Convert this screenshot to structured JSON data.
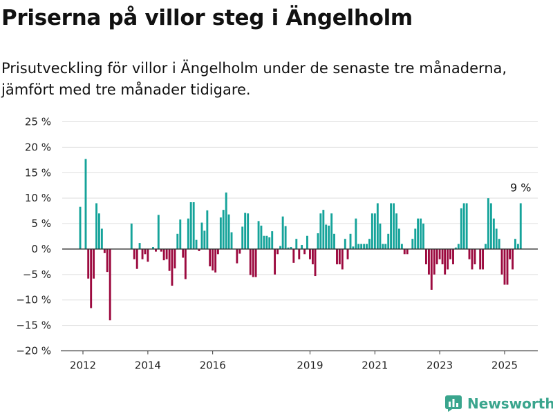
{
  "header": {
    "title": "Priserna på villor steg i Ängelholm",
    "subtitle": "Prisutveckling för villor i Ängelholm under de senaste tre månaderna, jämfört med tre månader tidigare."
  },
  "brand": {
    "name": "Newsworthy",
    "icon": "newsworthy-logo-icon",
    "color": "#3aa58d"
  },
  "colors": {
    "positive": "#15a39a",
    "negative": "#9c0a3f",
    "grid": "#dddddd",
    "zero_line": "#333333"
  },
  "chart_data": {
    "type": "bar",
    "title": "Priserna på villor steg i Ängelholm",
    "subtitle": "Prisutveckling för villor i Ängelholm under de senaste tre månaderna, jämfört med tre månader tidigare.",
    "xlabel": "",
    "ylabel": "",
    "unit": "%",
    "ylim": [
      -20,
      25
    ],
    "y_ticks": [
      25,
      20,
      15,
      10,
      5,
      0,
      -5,
      -10,
      -15,
      -20
    ],
    "y_tick_labels": [
      "25 %",
      "20 %",
      "15 %",
      "10 %",
      "5 %",
      "0 %",
      "−5 %",
      "−10 %",
      "−15 %",
      "−20 %"
    ],
    "x_tick_labels": [
      "2012",
      "2014",
      "2016",
      "2019",
      "2021",
      "2023",
      "2025"
    ],
    "grid": true,
    "legend": "none",
    "annotation": {
      "text": "9 %",
      "points_to": "last bar"
    },
    "series": [
      {
        "name": "",
        "points": [
          [
            "2011-12-01",
            8.3
          ],
          [
            "2012-01-01",
            0
          ],
          [
            "2012-02-01",
            17.7
          ],
          [
            "2012-03-01",
            -5.8
          ],
          [
            "2012-04-01",
            -11.6
          ],
          [
            "2012-05-01",
            -5.8
          ],
          [
            "2012-06-01",
            9
          ],
          [
            "2012-07-01",
            7
          ],
          [
            "2012-08-01",
            4
          ],
          [
            "2012-09-01",
            -0.8
          ],
          [
            "2012-10-01",
            -4.5
          ],
          [
            "2012-11-01",
            -14
          ],
          [
            "2013-07-01",
            5
          ],
          [
            "2013-08-01",
            -2
          ],
          [
            "2013-09-01",
            -3.9
          ],
          [
            "2013-10-01",
            1.2
          ],
          [
            "2013-11-01",
            -2
          ],
          [
            "2013-12-01",
            -1
          ],
          [
            "2014-01-01",
            -2.5
          ],
          [
            "2014-03-01",
            0.4
          ],
          [
            "2014-04-01",
            -0.5
          ],
          [
            "2014-05-01",
            6.7
          ],
          [
            "2014-06-01",
            -0.5
          ],
          [
            "2014-07-01",
            -2.2
          ],
          [
            "2014-08-01",
            -2
          ],
          [
            "2014-09-01",
            -4.3
          ],
          [
            "2014-10-01",
            -7.2
          ],
          [
            "2014-11-01",
            -3.8
          ],
          [
            "2014-12-01",
            3
          ],
          [
            "2015-01-01",
            5.8
          ],
          [
            "2015-02-01",
            -1.7
          ],
          [
            "2015-03-01",
            -5.9
          ],
          [
            "2015-04-01",
            6
          ],
          [
            "2015-05-01",
            9.2
          ],
          [
            "2015-06-01",
            9.2
          ],
          [
            "2015-07-01",
            1.8
          ],
          [
            "2015-08-01",
            -0.4
          ],
          [
            "2015-09-01",
            5.2
          ],
          [
            "2015-10-01",
            3.6
          ],
          [
            "2015-11-01",
            7.6
          ],
          [
            "2015-12-01",
            -3.4
          ],
          [
            "2016-01-01",
            -4.2
          ],
          [
            "2016-02-01",
            -4.6
          ],
          [
            "2016-03-01",
            -1
          ],
          [
            "2016-04-01",
            6.2
          ],
          [
            "2016-05-01",
            7.7
          ],
          [
            "2016-06-01",
            11.1
          ],
          [
            "2016-07-01",
            6.8
          ],
          [
            "2016-08-01",
            3.3
          ],
          [
            "2016-10-01",
            -2.8
          ],
          [
            "2016-11-01",
            -0.9
          ],
          [
            "2016-12-01",
            4.4
          ],
          [
            "2017-01-01",
            7.1
          ],
          [
            "2017-02-01",
            7
          ],
          [
            "2017-03-01",
            -5.1
          ],
          [
            "2017-04-01",
            -5.5
          ],
          [
            "2017-05-01",
            -5.5
          ],
          [
            "2017-06-01",
            5.5
          ],
          [
            "2017-07-01",
            4.6
          ],
          [
            "2017-08-01",
            2.6
          ],
          [
            "2017-09-01",
            2.6
          ],
          [
            "2017-10-01",
            2.3
          ],
          [
            "2017-11-01",
            3.5
          ],
          [
            "2017-12-01",
            -5
          ],
          [
            "2018-01-01",
            -1
          ],
          [
            "2018-02-01",
            0.6
          ],
          [
            "2018-03-01",
            6.4
          ],
          [
            "2018-04-01",
            4.5
          ],
          [
            "2018-05-01",
            0.3
          ],
          [
            "2018-06-01",
            0.4
          ],
          [
            "2018-07-01",
            -2.7
          ],
          [
            "2018-08-01",
            2
          ],
          [
            "2018-09-01",
            -2
          ],
          [
            "2018-10-01",
            0.8
          ],
          [
            "2018-11-01",
            -1
          ],
          [
            "2018-12-01",
            2.6
          ],
          [
            "2019-01-01",
            -2
          ],
          [
            "2019-02-01",
            -3
          ],
          [
            "2019-03-01",
            -5.3
          ],
          [
            "2019-04-01",
            3.1
          ],
          [
            "2019-05-01",
            7
          ],
          [
            "2019-06-01",
            7.7
          ],
          [
            "2019-07-01",
            4.8
          ],
          [
            "2019-08-01",
            4.6
          ],
          [
            "2019-09-01",
            7
          ],
          [
            "2019-10-01",
            3
          ],
          [
            "2019-11-01",
            -3
          ],
          [
            "2019-12-01",
            -3
          ],
          [
            "2020-01-01",
            -4
          ],
          [
            "2020-02-01",
            2
          ],
          [
            "2020-03-01",
            -2
          ],
          [
            "2020-04-01",
            3
          ],
          [
            "2020-05-01",
            0.5
          ],
          [
            "2020-06-01",
            6
          ],
          [
            "2020-07-01",
            1
          ],
          [
            "2020-08-01",
            1
          ],
          [
            "2020-09-01",
            1
          ],
          [
            "2020-10-01",
            1
          ],
          [
            "2020-11-01",
            2
          ],
          [
            "2020-12-01",
            7
          ],
          [
            "2021-01-01",
            7
          ],
          [
            "2021-02-01",
            9
          ],
          [
            "2021-03-01",
            5
          ],
          [
            "2021-04-01",
            1
          ],
          [
            "2021-05-01",
            1
          ],
          [
            "2021-06-01",
            3
          ],
          [
            "2021-07-01",
            9
          ],
          [
            "2021-08-01",
            9
          ],
          [
            "2021-09-01",
            7
          ],
          [
            "2021-10-01",
            4
          ],
          [
            "2021-11-01",
            1
          ],
          [
            "2021-12-01",
            -1
          ],
          [
            "2022-01-01",
            -1
          ],
          [
            "2022-03-01",
            2
          ],
          [
            "2022-04-01",
            4
          ],
          [
            "2022-05-01",
            6
          ],
          [
            "2022-06-01",
            6
          ],
          [
            "2022-07-01",
            5
          ],
          [
            "2022-08-01",
            -3
          ],
          [
            "2022-09-01",
            -5
          ],
          [
            "2022-10-01",
            -8
          ],
          [
            "2022-11-01",
            -5
          ],
          [
            "2022-12-01",
            -3
          ],
          [
            "2023-01-01",
            -2
          ],
          [
            "2023-02-01",
            -3
          ],
          [
            "2023-03-01",
            -5
          ],
          [
            "2023-04-01",
            -4
          ],
          [
            "2023-05-01",
            -2
          ],
          [
            "2023-06-01",
            -3
          ],
          [
            "2023-07-01",
            0.3
          ],
          [
            "2023-08-01",
            1
          ],
          [
            "2023-09-01",
            8
          ],
          [
            "2023-10-01",
            9
          ],
          [
            "2023-11-01",
            9
          ],
          [
            "2023-12-01",
            -2
          ],
          [
            "2024-01-01",
            -4
          ],
          [
            "2024-02-01",
            -3
          ],
          [
            "2024-04-01",
            -4
          ],
          [
            "2024-05-01",
            -4
          ],
          [
            "2024-06-01",
            1
          ],
          [
            "2024-07-01",
            10
          ],
          [
            "2024-08-01",
            9
          ],
          [
            "2024-09-01",
            6
          ],
          [
            "2024-10-01",
            4
          ],
          [
            "2024-11-01",
            2
          ],
          [
            "2024-12-01",
            -5
          ],
          [
            "2025-01-01",
            -7
          ],
          [
            "2025-02-01",
            -7
          ],
          [
            "2025-03-01",
            -2
          ],
          [
            "2025-04-01",
            -4
          ],
          [
            "2025-05-01",
            2
          ],
          [
            "2025-06-01",
            1
          ],
          [
            "2025-07-01",
            9
          ]
        ]
      }
    ]
  }
}
